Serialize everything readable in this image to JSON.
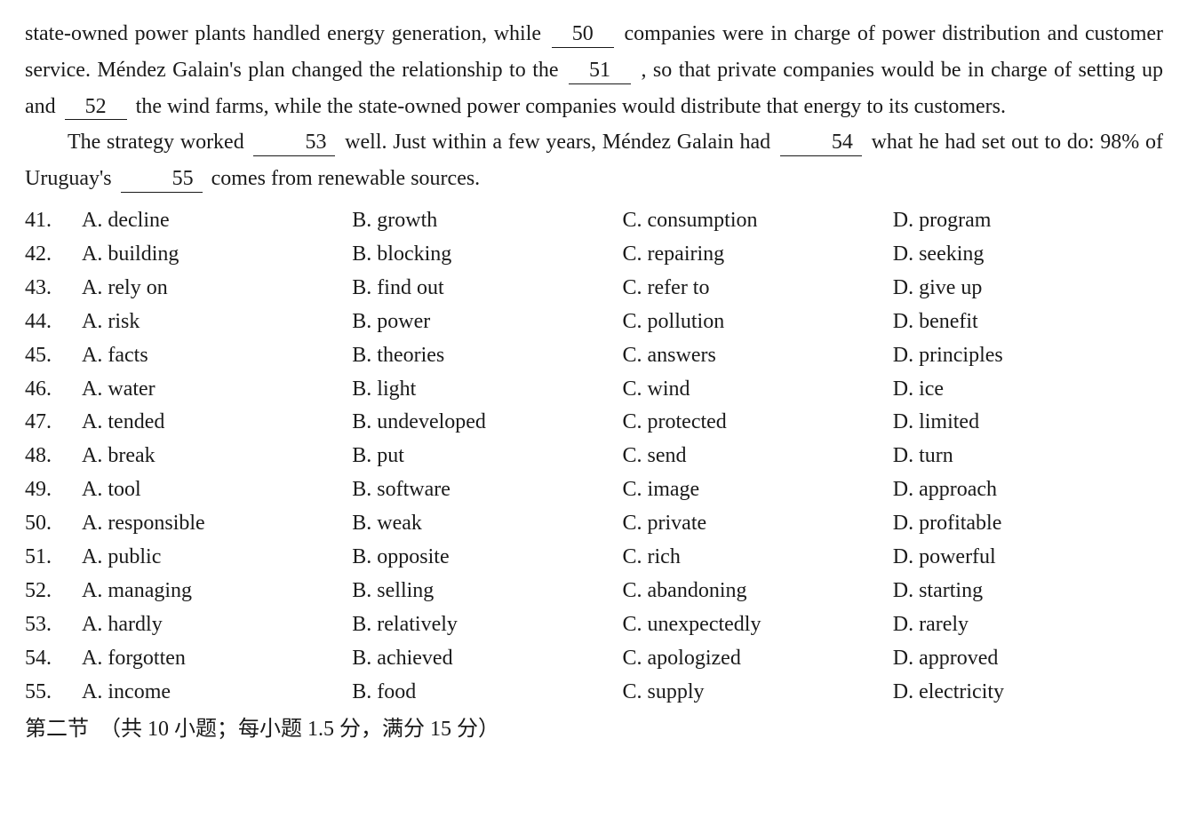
{
  "passage": {
    "p1_a": "state-owned power plants handled energy generation, while ",
    "blank50": "50",
    "p1_b": " companies were in charge of power distribution and customer service. Méndez Galain's plan changed the relationship to the ",
    "blank51": "51",
    "p1_c": " , so that private companies would be in charge of setting up and ",
    "blank52": "52",
    "p1_d": " the wind farms, while the state-owned power companies would distribute that energy to its customers.",
    "p2_a": "The strategy worked ",
    "blank53": "53",
    "p2_b": " well. Just within a few years, Méndez Galain had ",
    "blank54": "54",
    "p2_c": " what he had set out to do: 98% of Uruguay's ",
    "blank55": "55",
    "p2_d": " comes from renewable sources."
  },
  "questions": [
    {
      "n": "41.",
      "a": "A. decline",
      "b": "B. growth",
      "c": "C. consumption",
      "d": "D. program"
    },
    {
      "n": "42.",
      "a": "A. building",
      "b": "B. blocking",
      "c": "C. repairing",
      "d": "D. seeking"
    },
    {
      "n": "43.",
      "a": "A. rely on",
      "b": "B. find out",
      "c": "C. refer to",
      "d": "D. give up"
    },
    {
      "n": "44.",
      "a": "A. risk",
      "b": "B. power",
      "c": "C. pollution",
      "d": "D. benefit"
    },
    {
      "n": "45.",
      "a": "A. facts",
      "b": "B. theories",
      "c": "C. answers",
      "d": "D. principles"
    },
    {
      "n": "46.",
      "a": "A. water",
      "b": "B. light",
      "c": "C. wind",
      "d": "D. ice"
    },
    {
      "n": "47.",
      "a": "A. tended",
      "b": "B. undeveloped",
      "c": "C. protected",
      "d": "D. limited"
    },
    {
      "n": "48.",
      "a": "A. break",
      "b": "B. put",
      "c": "C. send",
      "d": "D. turn"
    },
    {
      "n": "49.",
      "a": "A. tool",
      "b": "B. software",
      "c": "C. image",
      "d": "D. approach"
    },
    {
      "n": "50.",
      "a": "A. responsible",
      "b": "B. weak",
      "c": "C. private",
      "d": "D. profitable"
    },
    {
      "n": "51.",
      "a": "A. public",
      "b": "B. opposite",
      "c": "C. rich",
      "d": "D. powerful"
    },
    {
      "n": "52.",
      "a": "A. managing",
      "b": "B. selling",
      "c": "C. abandoning",
      "d": "D. starting"
    },
    {
      "n": "53.",
      "a": "A. hardly",
      "b": "B. relatively",
      "c": "C. unexpectedly",
      "d": "D. rarely"
    },
    {
      "n": "54.",
      "a": "A. forgotten",
      "b": "B. achieved",
      "c": "C. apologized",
      "d": "D. approved"
    },
    {
      "n": "55.",
      "a": "A. income",
      "b": "B. food",
      "c": "C. supply",
      "d": "D. electricity"
    }
  ],
  "footer": "第二节　（共 10 小题；每小题 1.5 分，满分 15 分）"
}
